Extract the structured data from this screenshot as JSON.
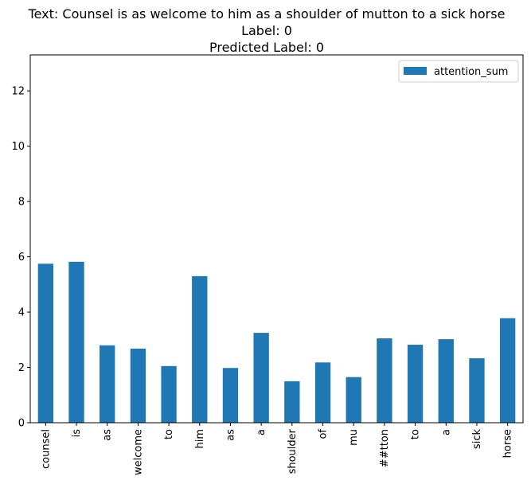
{
  "chart_data": {
    "type": "bar",
    "title_lines": [
      "Text: Counsel is as welcome to him as a shoulder of mutton to a sick horse",
      "Label: 0",
      "Predicted Label: 0"
    ],
    "xlabel": "",
    "ylabel": "",
    "categories": [
      "counsel",
      "is",
      "as",
      "welcome",
      "to",
      "him",
      "as",
      "a",
      "shoulder",
      "of",
      "mu",
      "##tton",
      "to",
      "a",
      "sick",
      "horse"
    ],
    "series": [
      {
        "name": "attention_sum",
        "values": [
          5.75,
          5.82,
          2.8,
          2.68,
          2.05,
          5.3,
          1.98,
          3.25,
          1.5,
          2.18,
          1.65,
          3.05,
          2.82,
          3.02,
          2.33,
          3.78
        ],
        "color": "#1f77b4"
      }
    ],
    "ylim": [
      0,
      13.3
    ],
    "yticks": [
      0,
      2,
      4,
      6,
      8,
      10,
      12
    ],
    "grid": false,
    "legend_position": "top-right"
  }
}
